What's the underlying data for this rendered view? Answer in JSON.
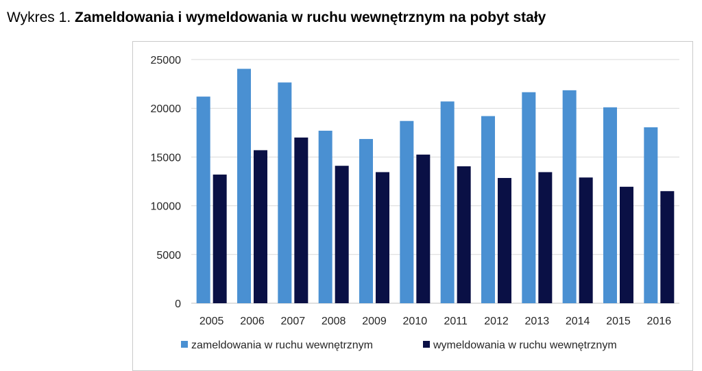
{
  "title": {
    "prefix": "Wykres 1.",
    "main": "Zameldowania i wymeldowania w ruchu wewnętrznym na pobyt stały"
  },
  "chart_data": {
    "type": "bar",
    "categories": [
      "2005",
      "2006",
      "2007",
      "2008",
      "2009",
      "2010",
      "2011",
      "2012",
      "2013",
      "2014",
      "2015",
      "2016"
    ],
    "series": [
      {
        "name": "zameldowania w ruchu wewnętrznym",
        "color": "#4a90d2",
        "values": [
          21200,
          24050,
          22650,
          17700,
          16850,
          18700,
          20700,
          19200,
          21650,
          21850,
          20100,
          18050
        ]
      },
      {
        "name": "wymeldowania w ruchu wewnętrznym",
        "color": "#0a1045",
        "values": [
          13200,
          15700,
          17000,
          14100,
          13450,
          15250,
          14050,
          12850,
          13450,
          12900,
          11950,
          11500
        ]
      }
    ],
    "ylim": [
      0,
      25000
    ],
    "yticks": [
      0,
      5000,
      10000,
      15000,
      20000,
      25000
    ],
    "grid": true,
    "legend": "bottom"
  }
}
